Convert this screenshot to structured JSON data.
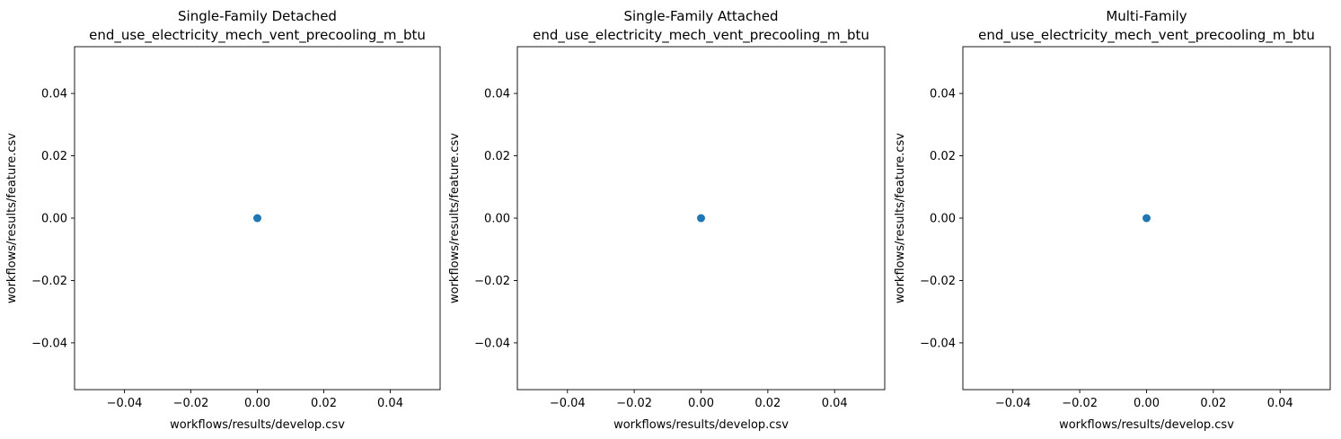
{
  "chart_data": [
    {
      "type": "scatter",
      "title": "Single-Family Detached",
      "subtitle": "end_use_electricity_mech_vent_precooling_m_btu",
      "xlabel": "workflows/results/develop.csv",
      "ylabel": "workflows/results/feature.csv",
      "xlim": [
        -0.055,
        0.055
      ],
      "ylim": [
        -0.055,
        0.055
      ],
      "xticks": [
        -0.04,
        -0.02,
        0.0,
        0.02,
        0.04
      ],
      "yticks": [
        -0.04,
        -0.02,
        0.0,
        0.02,
        0.04
      ],
      "xtick_labels": [
        "−0.04",
        "−0.02",
        "0.00",
        "0.02",
        "0.04"
      ],
      "ytick_labels": [
        "−0.04",
        "−0.02",
        "0.00",
        "0.02",
        "0.04"
      ],
      "points": [
        {
          "x": 0.0,
          "y": 0.0
        }
      ],
      "color": "#1f77b4",
      "grid": false
    },
    {
      "type": "scatter",
      "title": "Single-Family Attached",
      "subtitle": "end_use_electricity_mech_vent_precooling_m_btu",
      "xlabel": "workflows/results/develop.csv",
      "ylabel": "workflows/results/feature.csv",
      "xlim": [
        -0.055,
        0.055
      ],
      "ylim": [
        -0.055,
        0.055
      ],
      "xticks": [
        -0.04,
        -0.02,
        0.0,
        0.02,
        0.04
      ],
      "yticks": [
        -0.04,
        -0.02,
        0.0,
        0.02,
        0.04
      ],
      "xtick_labels": [
        "−0.04",
        "−0.02",
        "0.00",
        "0.02",
        "0.04"
      ],
      "ytick_labels": [
        "−0.04",
        "−0.02",
        "0.00",
        "0.02",
        "0.04"
      ],
      "points": [
        {
          "x": 0.0,
          "y": 0.0
        }
      ],
      "color": "#1f77b4",
      "grid": false
    },
    {
      "type": "scatter",
      "title": "Multi-Family",
      "subtitle": "end_use_electricity_mech_vent_precooling_m_btu",
      "xlabel": "workflows/results/develop.csv",
      "ylabel": "workflows/results/feature.csv",
      "xlim": [
        -0.055,
        0.055
      ],
      "ylim": [
        -0.055,
        0.055
      ],
      "xticks": [
        -0.04,
        -0.02,
        0.0,
        0.02,
        0.04
      ],
      "yticks": [
        -0.04,
        -0.02,
        0.0,
        0.02,
        0.04
      ],
      "xtick_labels": [
        "−0.04",
        "−0.02",
        "0.00",
        "0.02",
        "0.04"
      ],
      "ytick_labels": [
        "−0.04",
        "−0.02",
        "0.00",
        "0.02",
        "0.04"
      ],
      "points": [
        {
          "x": 0.0,
          "y": 0.0
        }
      ],
      "color": "#1f77b4",
      "grid": false
    }
  ]
}
